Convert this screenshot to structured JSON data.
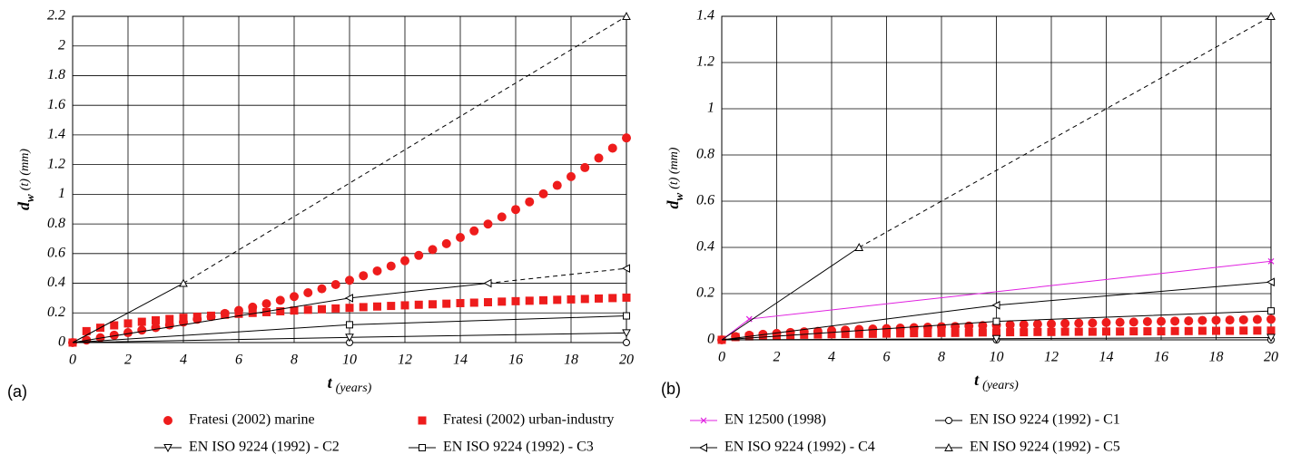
{
  "chart_data": [
    {
      "type": "line",
      "panel_label": "(a)",
      "xlabel": [
        "t",
        "(years)"
      ],
      "ylabel": [
        "d",
        "w",
        "(t) (mm)"
      ],
      "xlim": [
        0,
        20
      ],
      "ylim": [
        0,
        2.2
      ],
      "xticks": [
        0,
        2,
        4,
        6,
        8,
        10,
        12,
        14,
        16,
        18,
        20
      ],
      "yticks": [
        0,
        0.2,
        0.4,
        0.6,
        0.8,
        1,
        1.2,
        1.4,
        1.6,
        1.8,
        2,
        2.2
      ],
      "grid": true,
      "series": [
        {
          "marker": "circle-filled",
          "color": "#ee1c1c",
          "line": false,
          "x": [
            0,
            0.5,
            1,
            1.5,
            2,
            2.5,
            3,
            3.5,
            4,
            4.5,
            5,
            5.5,
            6,
            6.5,
            7,
            7.5,
            8,
            8.5,
            9,
            9.5,
            10,
            10.5,
            11,
            11.5,
            12,
            12.5,
            13,
            13.5,
            14,
            14.5,
            15,
            15.5,
            16,
            16.5,
            17,
            17.5,
            18,
            18.5,
            19,
            19.5,
            20
          ],
          "values": [
            0,
            0.017,
            0.033,
            0.05,
            0.067,
            0.084,
            0.101,
            0.119,
            0.138,
            0.157,
            0.176,
            0.196,
            0.217,
            0.239,
            0.262,
            0.285,
            0.31,
            0.336,
            0.363,
            0.391,
            0.42,
            0.451,
            0.483,
            0.516,
            0.552,
            0.588,
            0.627,
            0.667,
            0.709,
            0.753,
            0.799,
            0.847,
            0.897,
            0.949,
            1.003,
            1.06,
            1.119,
            1.18,
            1.244,
            1.311,
            1.38
          ]
        },
        {
          "marker": "square-filled",
          "color": "#ee1c1c",
          "line": false,
          "x": [
            0,
            0.5,
            1,
            1.5,
            2,
            2.5,
            3,
            3.5,
            4,
            4.5,
            5,
            5.5,
            6,
            6.5,
            7,
            7.5,
            8,
            8.5,
            9,
            9.5,
            10,
            10.5,
            11,
            11.5,
            12,
            12.5,
            13,
            13.5,
            14,
            14.5,
            15,
            15.5,
            16,
            16.5,
            17,
            17.5,
            18,
            18.5,
            19,
            19.5,
            20
          ],
          "values": [
            0,
            0.077,
            0.1,
            0.116,
            0.129,
            0.14,
            0.15,
            0.159,
            0.167,
            0.174,
            0.181,
            0.188,
            0.194,
            0.2,
            0.205,
            0.211,
            0.216,
            0.221,
            0.225,
            0.23,
            0.234,
            0.239,
            0.243,
            0.247,
            0.251,
            0.255,
            0.258,
            0.262,
            0.266,
            0.269,
            0.272,
            0.276,
            0.279,
            0.282,
            0.285,
            0.288,
            0.291,
            0.294,
            0.297,
            0.3,
            0.303
          ]
        },
        {
          "marker": "circle-open",
          "color": "#000000",
          "line": true,
          "x": [
            0,
            10,
            20
          ],
          "values": [
            0,
            0,
            0
          ]
        },
        {
          "marker": "tri-down",
          "color": "#000000",
          "line": true,
          "x": [
            0,
            10,
            20
          ],
          "values": [
            0,
            0.035,
            0.065
          ]
        },
        {
          "marker": "square-open",
          "color": "#000000",
          "line": true,
          "x": [
            0,
            10,
            20
          ],
          "values": [
            0,
            0.12,
            0.18
          ]
        },
        {
          "marker": "tri-left",
          "color": "#000000",
          "line": true,
          "x": [
            0,
            10,
            15,
            20
          ],
          "values": [
            0,
            0.3,
            0.4,
            0.5
          ],
          "dashed_from": 2
        },
        {
          "marker": "tri-up",
          "color": "#000000",
          "line": true,
          "x": [
            0,
            4,
            20
          ],
          "values": [
            0,
            0.4,
            2.2
          ],
          "dashed_from": 1
        }
      ]
    },
    {
      "type": "line",
      "panel_label": "(b)",
      "xlabel": [
        "t",
        "(years)"
      ],
      "ylabel": [
        "d",
        "w",
        "(t) (mm)"
      ],
      "xlim": [
        0,
        20
      ],
      "ylim": [
        0,
        1.4
      ],
      "xticks": [
        0,
        2,
        4,
        6,
        8,
        10,
        12,
        14,
        16,
        18,
        20
      ],
      "yticks": [
        0,
        0.2,
        0.4,
        0.6,
        0.8,
        1,
        1.2,
        1.4
      ],
      "grid": true,
      "legend": "bottom",
      "series": [
        {
          "name": "Fratesi (2002) marine",
          "marker": "circle-filled",
          "color": "#ee1c1c",
          "line": false,
          "x": [
            0,
            0.5,
            1,
            1.5,
            2,
            2.5,
            3,
            3.5,
            4,
            4.5,
            5,
            5.5,
            6,
            6.5,
            7,
            7.5,
            8,
            8.5,
            9,
            9.5,
            10,
            10.5,
            11,
            11.5,
            12,
            12.5,
            13,
            13.5,
            14,
            14.5,
            15,
            15.5,
            16,
            16.5,
            17,
            17.5,
            18,
            18.5,
            19,
            19.5,
            20
          ],
          "values": [
            0,
            0.014,
            0.02,
            0.024,
            0.028,
            0.032,
            0.035,
            0.037,
            0.04,
            0.042,
            0.045,
            0.047,
            0.049,
            0.051,
            0.053,
            0.055,
            0.057,
            0.058,
            0.06,
            0.062,
            0.063,
            0.065,
            0.066,
            0.068,
            0.069,
            0.071,
            0.072,
            0.073,
            0.075,
            0.076,
            0.077,
            0.079,
            0.08,
            0.081,
            0.082,
            0.084,
            0.085,
            0.086,
            0.087,
            0.088,
            0.089
          ]
        },
        {
          "name": "Fratesi (2002) urban-industry",
          "marker": "square-filled",
          "color": "#ee1c1c",
          "line": false,
          "x": [
            0,
            0.5,
            1,
            1.5,
            2,
            2.5,
            3,
            3.5,
            4,
            4.5,
            5,
            5.5,
            6,
            6.5,
            7,
            7.5,
            8,
            8.5,
            9,
            9.5,
            10,
            10.5,
            11,
            11.5,
            12,
            12.5,
            13,
            13.5,
            14,
            14.5,
            15,
            15.5,
            16,
            16.5,
            17,
            17.5,
            18,
            18.5,
            19,
            19.5,
            20
          ],
          "values": [
            0,
            0.012,
            0.015,
            0.017,
            0.019,
            0.02,
            0.022,
            0.023,
            0.024,
            0.025,
            0.026,
            0.026,
            0.027,
            0.028,
            0.029,
            0.029,
            0.03,
            0.03,
            0.031,
            0.032,
            0.032,
            0.033,
            0.033,
            0.034,
            0.034,
            0.035,
            0.035,
            0.035,
            0.036,
            0.036,
            0.037,
            0.037,
            0.037,
            0.038,
            0.038,
            0.039,
            0.039,
            0.039,
            0.04,
            0.04,
            0.04
          ]
        },
        {
          "name": "EN 12500 (1998)",
          "marker": "cross",
          "color": "#e020e0",
          "line": true,
          "x": [
            0,
            1,
            20
          ],
          "values": [
            0,
            0.09,
            0.34
          ]
        },
        {
          "name": "EN ISO 9224 (1992) - C1",
          "marker": "circle-open",
          "color": "#000000",
          "line": true,
          "x": [
            0,
            10,
            20
          ],
          "values": [
            0,
            0,
            0
          ]
        },
        {
          "name": "EN ISO 9224 (1992) - C2",
          "marker": "tri-down",
          "color": "#000000",
          "line": true,
          "x": [
            0,
            10,
            20
          ],
          "values": [
            0,
            0.005,
            0.01
          ]
        },
        {
          "name": "EN ISO 9224 (1992) - C3",
          "marker": "square-open",
          "color": "#000000",
          "line": true,
          "x": [
            0,
            10,
            20
          ],
          "values": [
            0,
            0.08,
            0.125
          ]
        },
        {
          "name": "EN ISO 9224 (1992) - C4",
          "marker": "tri-left",
          "color": "#000000",
          "line": true,
          "x": [
            0,
            10,
            20
          ],
          "values": [
            0,
            0.15,
            0.25
          ]
        },
        {
          "name": "EN ISO 9224 (1992) - C5",
          "marker": "tri-up",
          "color": "#000000",
          "line": true,
          "x": [
            0,
            5,
            20
          ],
          "values": [
            0,
            0.4,
            1.4
          ],
          "dashed_from": 1
        }
      ]
    }
  ]
}
